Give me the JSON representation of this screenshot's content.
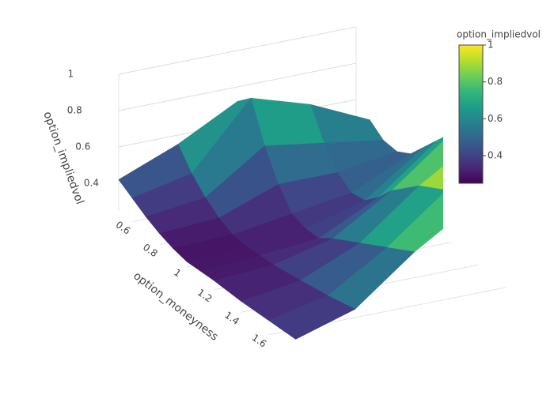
{
  "chart_data": {
    "type": "surface",
    "xlabel": "option_moneyness",
    "zlabel": "option_impliedvol",
    "x": [
      0.5,
      0.6,
      0.7,
      0.8,
      0.9,
      1.0,
      1.1,
      1.2,
      1.4,
      1.6,
      1.8
    ],
    "z": [
      [
        0.42,
        0.38,
        0.34,
        0.31,
        0.29,
        0.28,
        0.29,
        0.3,
        0.31,
        0.33,
        0.35
      ],
      [
        0.55,
        0.45,
        0.38,
        0.33,
        0.3,
        0.3,
        0.31,
        0.32,
        0.36,
        0.4,
        0.45
      ],
      [
        0.72,
        0.8,
        0.6,
        0.45,
        0.35,
        0.33,
        0.34,
        0.4,
        0.5,
        0.6,
        0.7
      ],
      [
        0.6,
        0.7,
        0.55,
        0.45,
        0.4,
        0.42,
        0.5,
        0.6,
        0.75,
        0.85,
        0.9
      ],
      [
        0.5,
        0.55,
        0.5,
        0.5,
        0.55,
        0.65,
        0.75,
        0.85,
        0.95,
        1.0,
        1.0
      ]
    ],
    "xticks": [
      0.6,
      0.8,
      1,
      1.2,
      1.4,
      1.6
    ],
    "zlim": [
      0.25,
      1
    ],
    "zticks": [
      0.4,
      0.6,
      0.8,
      1
    ],
    "colorscale": "Viridis",
    "colorbar": {
      "title": "option_impliedvol",
      "clim": [
        0.25,
        1
      ],
      "ticks": [
        0.4,
        0.6,
        0.8,
        1
      ]
    },
    "grid": true
  }
}
